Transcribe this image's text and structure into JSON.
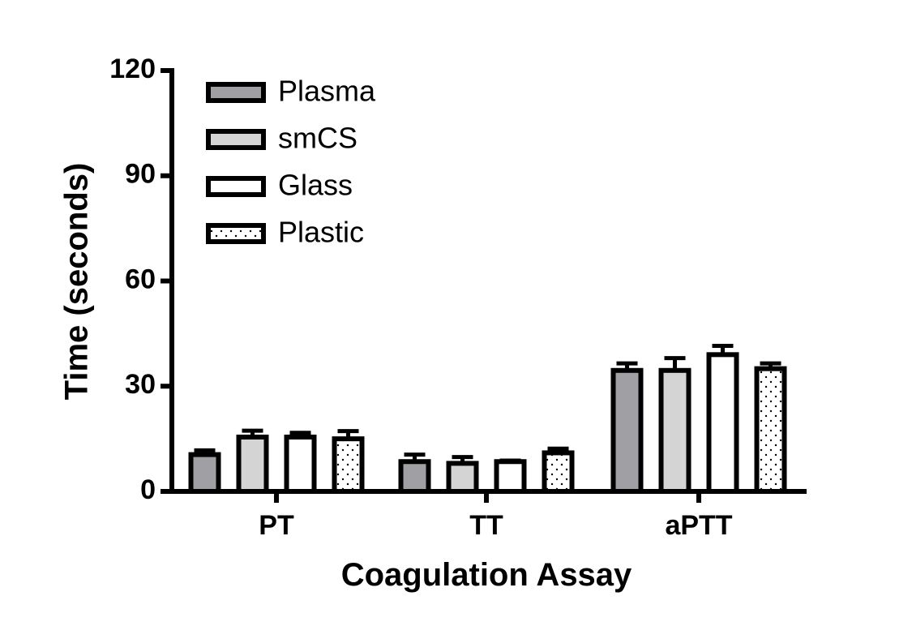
{
  "chart_data": {
    "type": "bar",
    "title": "",
    "xlabel": "Coagulation Assay",
    "ylabel": "Time (seconds)",
    "ylim": [
      0,
      120
    ],
    "yticks": [
      0,
      30,
      60,
      90,
      120
    ],
    "categories": [
      "PT",
      "TT",
      "aPTT"
    ],
    "legend_position": "top-left",
    "error_bars": true,
    "series": [
      {
        "name": "Plasma",
        "fill": "#a0a0a4",
        "pattern": "solid",
        "values": [
          10.5,
          8.5,
          34.5
        ],
        "errors": [
          1.2,
          2.0,
          2.0
        ]
      },
      {
        "name": "smCS",
        "fill": "#d4d4d4",
        "pattern": "solid",
        "values": [
          15.5,
          8.0,
          34.5
        ],
        "errors": [
          1.8,
          1.8,
          3.5
        ]
      },
      {
        "name": "Glass",
        "fill": "#ffffff",
        "pattern": "solid",
        "values": [
          15.5,
          8.5,
          39.0
        ],
        "errors": [
          1.2,
          0.3,
          2.5
        ]
      },
      {
        "name": "Plastic",
        "fill": "#ffffff",
        "pattern": "dotted",
        "values": [
          15.0,
          11.0,
          35.0
        ],
        "errors": [
          2.2,
          1.2,
          1.5
        ]
      }
    ]
  }
}
